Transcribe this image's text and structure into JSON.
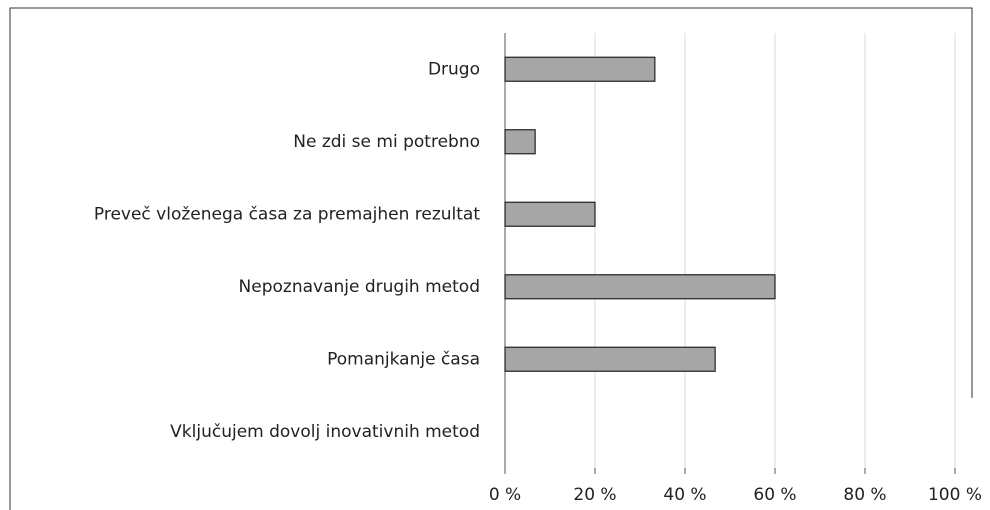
{
  "chart_data": {
    "type": "barh",
    "categories": [
      "Drugo",
      "Ne zdi se mi potrebno",
      "Preveč vloženega časa za premajhen rezultat",
      "Nepoznavanje drugih metod",
      "Pomanjkanje časa",
      "Vključujem dovolj inovativnih metod"
    ],
    "values": [
      33.3,
      6.7,
      20,
      60,
      46.7,
      0
    ],
    "color": "#a6a6a6",
    "xlim": [
      0,
      100
    ],
    "xticks": [
      {
        "value": 0,
        "label": "0 %"
      },
      {
        "value": 20,
        "label": "20 %"
      },
      {
        "value": 40,
        "label": "40 %"
      },
      {
        "value": 60,
        "label": "60 %"
      },
      {
        "value": 80,
        "label": "80 %"
      },
      {
        "value": 100,
        "label": "100 %"
      }
    ],
    "grid": true
  }
}
